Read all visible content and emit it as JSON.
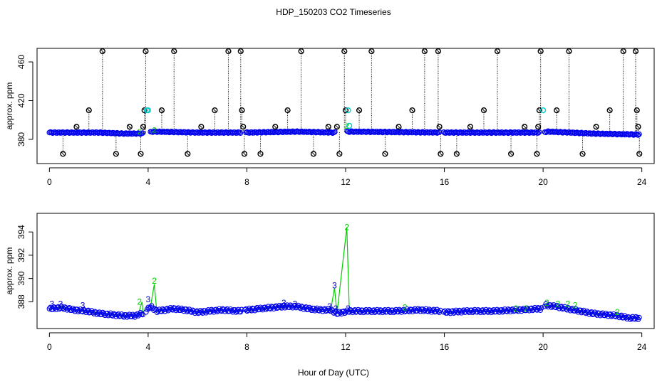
{
  "chart_data": [
    {
      "type": "scatter",
      "panel": "top",
      "title": "HDP_150203  CO2 Timeseries",
      "ylabel": "approx. ppm",
      "xlabel": "",
      "xlim": [
        -0.5,
        24.5
      ],
      "ylim": [
        355,
        474
      ],
      "x_ticks": [
        0,
        4,
        8,
        12,
        16,
        20,
        24
      ],
      "y_ticks": [
        380,
        420,
        460
      ],
      "colors": {
        "main": "#0000ee",
        "spike": "#000000",
        "alt": "#00cccc",
        "green": "#00cc00"
      },
      "baseline": [
        {
          "x": 0.0,
          "y": 387
        },
        {
          "x": 2.0,
          "y": 387
        },
        {
          "x": 3.0,
          "y": 386
        },
        {
          "x": 3.85,
          "y": 386
        },
        {
          "x": 4.2,
          "y": 388
        },
        {
          "x": 6.0,
          "y": 387
        },
        {
          "x": 8.0,
          "y": 387
        },
        {
          "x": 10.0,
          "y": 388
        },
        {
          "x": 11.5,
          "y": 387
        },
        {
          "x": 12.1,
          "y": 388
        },
        {
          "x": 16.0,
          "y": 387
        },
        {
          "x": 19.9,
          "y": 387
        },
        {
          "x": 20.2,
          "y": 388
        },
        {
          "x": 22.0,
          "y": 386
        },
        {
          "x": 23.8,
          "y": 385
        }
      ],
      "gaps": [
        [
          3.8,
          4.05
        ],
        [
          7.75,
          7.95
        ],
        [
          11.6,
          12.05
        ],
        [
          15.8,
          15.95
        ],
        [
          19.85,
          20.05
        ]
      ],
      "spikes": [
        {
          "x": 0.55,
          "y": 365
        },
        {
          "x": 1.1,
          "y": 393
        },
        {
          "x": 1.6,
          "y": 410
        },
        {
          "x": 2.15,
          "y": 471
        },
        {
          "x": 2.7,
          "y": 365
        },
        {
          "x": 3.25,
          "y": 393
        },
        {
          "x": 3.7,
          "y": 365
        },
        {
          "x": 3.8,
          "y": 393
        },
        {
          "x": 3.85,
          "y": 410
        },
        {
          "x": 3.9,
          "y": 471
        },
        {
          "x": 4.55,
          "y": 410
        },
        {
          "x": 5.05,
          "y": 471
        },
        {
          "x": 5.6,
          "y": 365
        },
        {
          "x": 6.15,
          "y": 393
        },
        {
          "x": 6.7,
          "y": 410
        },
        {
          "x": 7.25,
          "y": 471
        },
        {
          "x": 7.75,
          "y": 471
        },
        {
          "x": 7.8,
          "y": 410
        },
        {
          "x": 7.85,
          "y": 393
        },
        {
          "x": 7.9,
          "y": 365
        },
        {
          "x": 8.55,
          "y": 365
        },
        {
          "x": 9.15,
          "y": 393
        },
        {
          "x": 9.65,
          "y": 410
        },
        {
          "x": 10.2,
          "y": 471
        },
        {
          "x": 10.7,
          "y": 365
        },
        {
          "x": 11.3,
          "y": 393
        },
        {
          "x": 11.65,
          "y": 393
        },
        {
          "x": 11.75,
          "y": 365
        },
        {
          "x": 11.95,
          "y": 471
        },
        {
          "x": 12.0,
          "y": 410
        },
        {
          "x": 12.55,
          "y": 410
        },
        {
          "x": 13.05,
          "y": 471
        },
        {
          "x": 13.6,
          "y": 365
        },
        {
          "x": 14.15,
          "y": 393
        },
        {
          "x": 14.7,
          "y": 410
        },
        {
          "x": 15.2,
          "y": 471
        },
        {
          "x": 15.75,
          "y": 471
        },
        {
          "x": 15.8,
          "y": 393
        },
        {
          "x": 15.85,
          "y": 365
        },
        {
          "x": 16.5,
          "y": 365
        },
        {
          "x": 17.05,
          "y": 393
        },
        {
          "x": 17.6,
          "y": 410
        },
        {
          "x": 18.15,
          "y": 471
        },
        {
          "x": 18.7,
          "y": 365
        },
        {
          "x": 19.25,
          "y": 393
        },
        {
          "x": 19.75,
          "y": 365
        },
        {
          "x": 19.8,
          "y": 393
        },
        {
          "x": 19.85,
          "y": 410
        },
        {
          "x": 19.9,
          "y": 471
        },
        {
          "x": 20.55,
          "y": 410
        },
        {
          "x": 21.05,
          "y": 471
        },
        {
          "x": 21.6,
          "y": 365
        },
        {
          "x": 22.15,
          "y": 393
        },
        {
          "x": 22.7,
          "y": 410
        },
        {
          "x": 23.25,
          "y": 471
        },
        {
          "x": 23.75,
          "y": 471
        },
        {
          "x": 23.8,
          "y": 410
        },
        {
          "x": 23.85,
          "y": 393
        },
        {
          "x": 23.9,
          "y": 365
        }
      ],
      "alt_points": [
        {
          "x": 3.95,
          "y": 410
        },
        {
          "x": 4.0,
          "y": 410
        },
        {
          "x": 12.1,
          "y": 410
        },
        {
          "x": 12.15,
          "y": 394
        },
        {
          "x": 20.0,
          "y": 410
        }
      ],
      "green_labels": [
        {
          "x": 3.65,
          "y": 388,
          "t": "2"
        },
        {
          "x": 4.25,
          "y": 390,
          "t": "2"
        },
        {
          "x": 12.05,
          "y": 394,
          "t": "2"
        }
      ]
    },
    {
      "type": "line",
      "panel": "bottom",
      "title": "",
      "ylabel": "approx. ppm",
      "xlabel": "Hour of Day (UTC)",
      "xlim": [
        -0.5,
        24.5
      ],
      "ylim": [
        385.7,
        395.6
      ],
      "x_ticks": [
        0,
        4,
        8,
        12,
        16,
        20,
        24
      ],
      "y_ticks": [
        388,
        390,
        392,
        394
      ],
      "colors": {
        "line": "#00cc00",
        "points": "#0000ee",
        "label3": "#0000cc",
        "label2": "#00cc00"
      },
      "series": [
        {
          "x": 0.0,
          "y": 387.4
        },
        {
          "x": 0.5,
          "y": 387.5
        },
        {
          "x": 1.0,
          "y": 387.3
        },
        {
          "x": 1.5,
          "y": 387.2
        },
        {
          "x": 2.0,
          "y": 387.0
        },
        {
          "x": 2.5,
          "y": 386.9
        },
        {
          "x": 3.0,
          "y": 386.8
        },
        {
          "x": 3.5,
          "y": 386.8
        },
        {
          "x": 3.6,
          "y": 386.9
        },
        {
          "x": 3.75,
          "y": 388.0
        },
        {
          "x": 3.8,
          "y": 387.0
        },
        {
          "x": 4.1,
          "y": 387.6
        },
        {
          "x": 4.25,
          "y": 389.5
        },
        {
          "x": 4.35,
          "y": 387.2
        },
        {
          "x": 5.0,
          "y": 387.4
        },
        {
          "x": 5.5,
          "y": 387.3
        },
        {
          "x": 6.0,
          "y": 387.1
        },
        {
          "x": 6.5,
          "y": 387.2
        },
        {
          "x": 7.0,
          "y": 387.3
        },
        {
          "x": 7.7,
          "y": 387.2
        },
        {
          "x": 8.0,
          "y": 387.3
        },
        {
          "x": 8.5,
          "y": 387.4
        },
        {
          "x": 9.0,
          "y": 387.5
        },
        {
          "x": 9.5,
          "y": 387.6
        },
        {
          "x": 10.0,
          "y": 387.6
        },
        {
          "x": 10.5,
          "y": 387.4
        },
        {
          "x": 11.0,
          "y": 387.3
        },
        {
          "x": 11.4,
          "y": 387.3
        },
        {
          "x": 11.55,
          "y": 389.2
        },
        {
          "x": 11.65,
          "y": 387.0
        },
        {
          "x": 12.05,
          "y": 394.4
        },
        {
          "x": 12.15,
          "y": 387.2
        },
        {
          "x": 13.0,
          "y": 387.2
        },
        {
          "x": 14.0,
          "y": 387.2
        },
        {
          "x": 15.0,
          "y": 387.3
        },
        {
          "x": 15.8,
          "y": 387.2
        },
        {
          "x": 16.0,
          "y": 387.1
        },
        {
          "x": 17.0,
          "y": 387.2
        },
        {
          "x": 18.0,
          "y": 387.2
        },
        {
          "x": 19.0,
          "y": 387.3
        },
        {
          "x": 19.9,
          "y": 387.4
        },
        {
          "x": 20.1,
          "y": 387.7
        },
        {
          "x": 20.5,
          "y": 387.6
        },
        {
          "x": 21.0,
          "y": 387.4
        },
        {
          "x": 21.5,
          "y": 387.2
        },
        {
          "x": 22.0,
          "y": 387.0
        },
        {
          "x": 22.5,
          "y": 386.9
        },
        {
          "x": 23.0,
          "y": 386.8
        },
        {
          "x": 23.5,
          "y": 386.6
        },
        {
          "x": 23.9,
          "y": 386.6
        }
      ],
      "breaks": [
        3.85,
        7.85,
        15.9,
        20.0
      ],
      "labels": [
        {
          "x": 0.1,
          "y": 387.8,
          "t": "3"
        },
        {
          "x": 0.45,
          "y": 387.8,
          "t": "3"
        },
        {
          "x": 1.35,
          "y": 387.7,
          "t": "3"
        },
        {
          "x": 3.65,
          "y": 388.0,
          "t": "2"
        },
        {
          "x": 4.0,
          "y": 388.2,
          "t": "3"
        },
        {
          "x": 4.25,
          "y": 389.8,
          "t": "2"
        },
        {
          "x": 9.5,
          "y": 387.9,
          "t": "3"
        },
        {
          "x": 9.95,
          "y": 387.8,
          "t": "3"
        },
        {
          "x": 11.35,
          "y": 387.6,
          "t": "3"
        },
        {
          "x": 11.55,
          "y": 389.4,
          "t": "3"
        },
        {
          "x": 11.6,
          "y": 387.4,
          "t": "3"
        },
        {
          "x": 12.05,
          "y": 394.4,
          "t": "2"
        },
        {
          "x": 12.1,
          "y": 387.4,
          "t": "3"
        },
        {
          "x": 14.4,
          "y": 387.5,
          "t": "2"
        },
        {
          "x": 18.9,
          "y": 387.4,
          "t": "2"
        },
        {
          "x": 19.3,
          "y": 387.4,
          "t": "2"
        },
        {
          "x": 20.15,
          "y": 387.9,
          "t": "2"
        },
        {
          "x": 20.6,
          "y": 387.8,
          "t": "2"
        },
        {
          "x": 21.0,
          "y": 387.8,
          "t": "2"
        },
        {
          "x": 21.3,
          "y": 387.7,
          "t": "2"
        },
        {
          "x": 23.0,
          "y": 387.1,
          "t": "2"
        }
      ]
    }
  ]
}
